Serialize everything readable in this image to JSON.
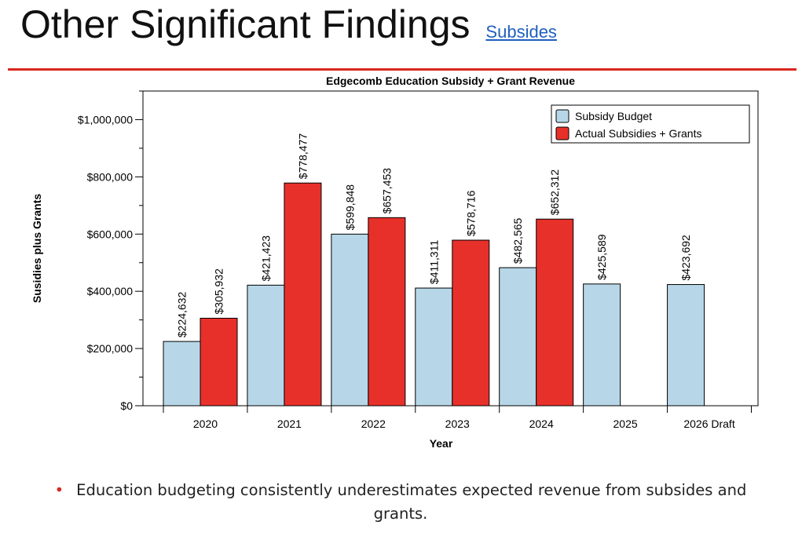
{
  "slide": {
    "title": "Other Significant Findings",
    "subtitle": "Subsides",
    "bullet": "Education budgeting consistently underestimates expected revenue from subsides and grants.",
    "accent_color": "#d9261c"
  },
  "chart_data": {
    "type": "bar",
    "title": "Edgecomb Education Subsidy + Grant Revenue",
    "xlabel": "Year",
    "ylabel": "Susidies plus Grants",
    "categories": [
      "2020",
      "2021",
      "2022",
      "2023",
      "2024",
      "2025",
      "2026 Draft"
    ],
    "ylim": [
      0,
      1100000
    ],
    "yticks": [
      0,
      200000,
      400000,
      600000,
      800000,
      1000000
    ],
    "ytick_labels": [
      "$0",
      "$200,000",
      "$400,000",
      "$600,000",
      "$800,000",
      "$1,000,000"
    ],
    "grid": false,
    "legend_position": "top-right",
    "series": [
      {
        "name": "Subsidy Budget",
        "color": "#b7d7e8",
        "values": [
          224632,
          421423,
          599848,
          411311,
          482565,
          425589,
          423692
        ],
        "labels": [
          "$224,632",
          "$421,423",
          "$599,848",
          "$411,311",
          "$482,565",
          "$425,589",
          "$423,692"
        ]
      },
      {
        "name": "Actual Subsidies + Grants",
        "color": "#e8302a",
        "values": [
          305932,
          778477,
          657453,
          578716,
          652312,
          null,
          null
        ],
        "labels": [
          "$305,932",
          "$778,477",
          "$657,453",
          "$578,716",
          "$652,312",
          null,
          null
        ]
      }
    ]
  }
}
